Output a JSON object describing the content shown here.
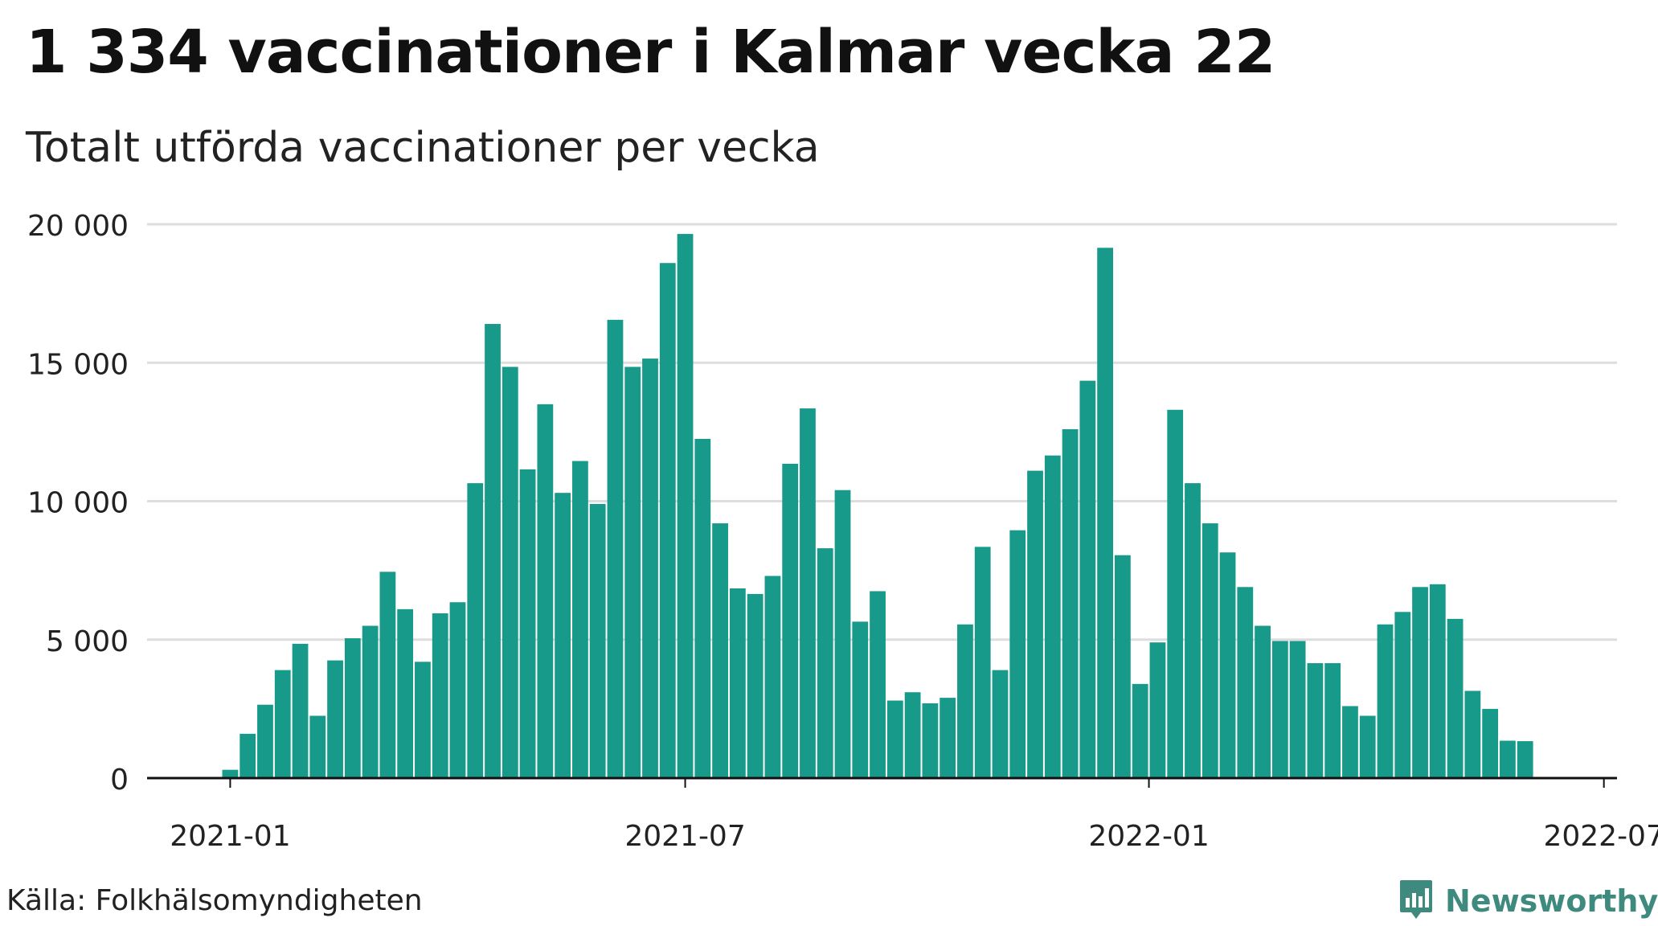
{
  "header": {
    "title": "1 334 vaccinationer i Kalmar vecka 22",
    "subtitle": "Totalt utförda vaccinationer per vecka"
  },
  "footer": {
    "source": "Källa: Folkhälsomyndigheten",
    "brand": "Newsworthy"
  },
  "colors": {
    "bar": "#179a8a",
    "grid": "#dddddd",
    "axis": "#111111",
    "brand": "#3f8a7e"
  },
  "icons": {
    "brand_logo": "newsworthy-logo-icon"
  },
  "chart_data": {
    "type": "bar",
    "title": "1 334 vaccinationer i Kalmar vecka 22",
    "subtitle": "Totalt utförda vaccinationer per vecka",
    "xlabel": "",
    "ylabel": "",
    "ylim": [
      0,
      20000
    ],
    "y_ticks": [
      {
        "value": 0,
        "label": "0"
      },
      {
        "value": 5000,
        "label": "5 000"
      },
      {
        "value": 10000,
        "label": "10 000"
      },
      {
        "value": 15000,
        "label": "15 000"
      },
      {
        "value": 20000,
        "label": "20 000"
      }
    ],
    "x_ticks": [
      {
        "week_index": 0,
        "label": "2021-01"
      },
      {
        "week_index": 26,
        "label": "2021-07"
      },
      {
        "week_index": 52.5,
        "label": "2022-01"
      },
      {
        "week_index": 78.5,
        "label": "2022-07"
      }
    ],
    "x_range": [
      -4.75,
      79.25
    ],
    "grid": true,
    "legend": "none",
    "week_start_index": 0,
    "values": [
      300,
      1600,
      2650,
      3900,
      4850,
      2250,
      4250,
      5050,
      5500,
      7450,
      6100,
      4200,
      5950,
      6350,
      10650,
      16400,
      14850,
      11150,
      13500,
      10300,
      11450,
      9900,
      16550,
      14850,
      15150,
      18600,
      19650,
      12250,
      9200,
      6850,
      6650,
      7300,
      11350,
      13350,
      8300,
      10400,
      5650,
      6750,
      2800,
      3100,
      2700,
      2900,
      5550,
      8350,
      3900,
      8950,
      11100,
      11650,
      12600,
      14350,
      19150,
      8050,
      3400,
      4900,
      13300,
      10650,
      9200,
      8150,
      6900,
      5500,
      4950,
      4950,
      4150,
      4150,
      2600,
      2250,
      5550,
      6000,
      6900,
      7000,
      5750,
      3150,
      2500,
      1350,
      1334
    ]
  }
}
